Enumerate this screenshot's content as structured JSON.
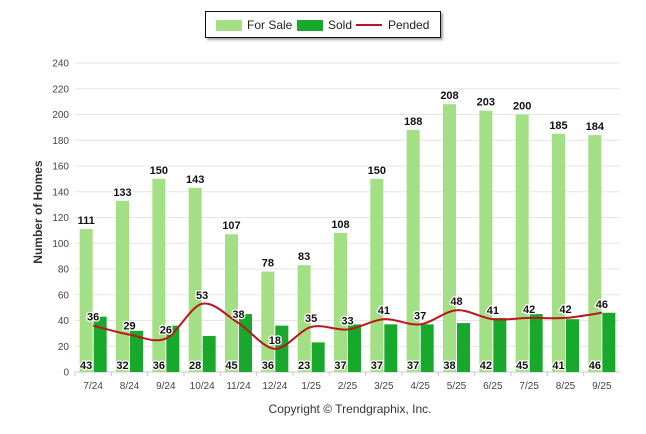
{
  "chart_data": {
    "type": "bar",
    "title": "",
    "xlabel": "",
    "ylabel": "Number of Homes",
    "ylim": [
      0,
      240
    ],
    "yticks": [
      0,
      20,
      40,
      60,
      80,
      100,
      120,
      140,
      160,
      180,
      200,
      220,
      240
    ],
    "grid": true,
    "legend_position": "top-center",
    "categories": [
      "7/24",
      "8/24",
      "9/24",
      "10/24",
      "11/24",
      "12/24",
      "1/25",
      "2/25",
      "3/25",
      "4/25",
      "5/25",
      "6/25",
      "7/25",
      "8/25",
      "9/25"
    ],
    "series": [
      {
        "name": "For Sale",
        "kind": "bar",
        "color": "#a3df84",
        "values": [
          111,
          133,
          150,
          143,
          107,
          78,
          83,
          108,
          150,
          188,
          208,
          203,
          200,
          185,
          184
        ]
      },
      {
        "name": "Sold",
        "kind": "bar",
        "color": "#17a82c",
        "values": [
          43,
          32,
          36,
          28,
          45,
          36,
          23,
          37,
          37,
          37,
          38,
          42,
          45,
          41,
          46
        ]
      },
      {
        "name": "Pended",
        "kind": "line",
        "color": "#c0141c",
        "values": [
          36,
          29,
          26,
          53,
          38,
          18,
          35,
          33,
          41,
          37,
          48,
          41,
          42,
          42,
          46
        ]
      }
    ]
  },
  "footer": {
    "copyright": "Copyright © Trendgraphix, Inc."
  }
}
